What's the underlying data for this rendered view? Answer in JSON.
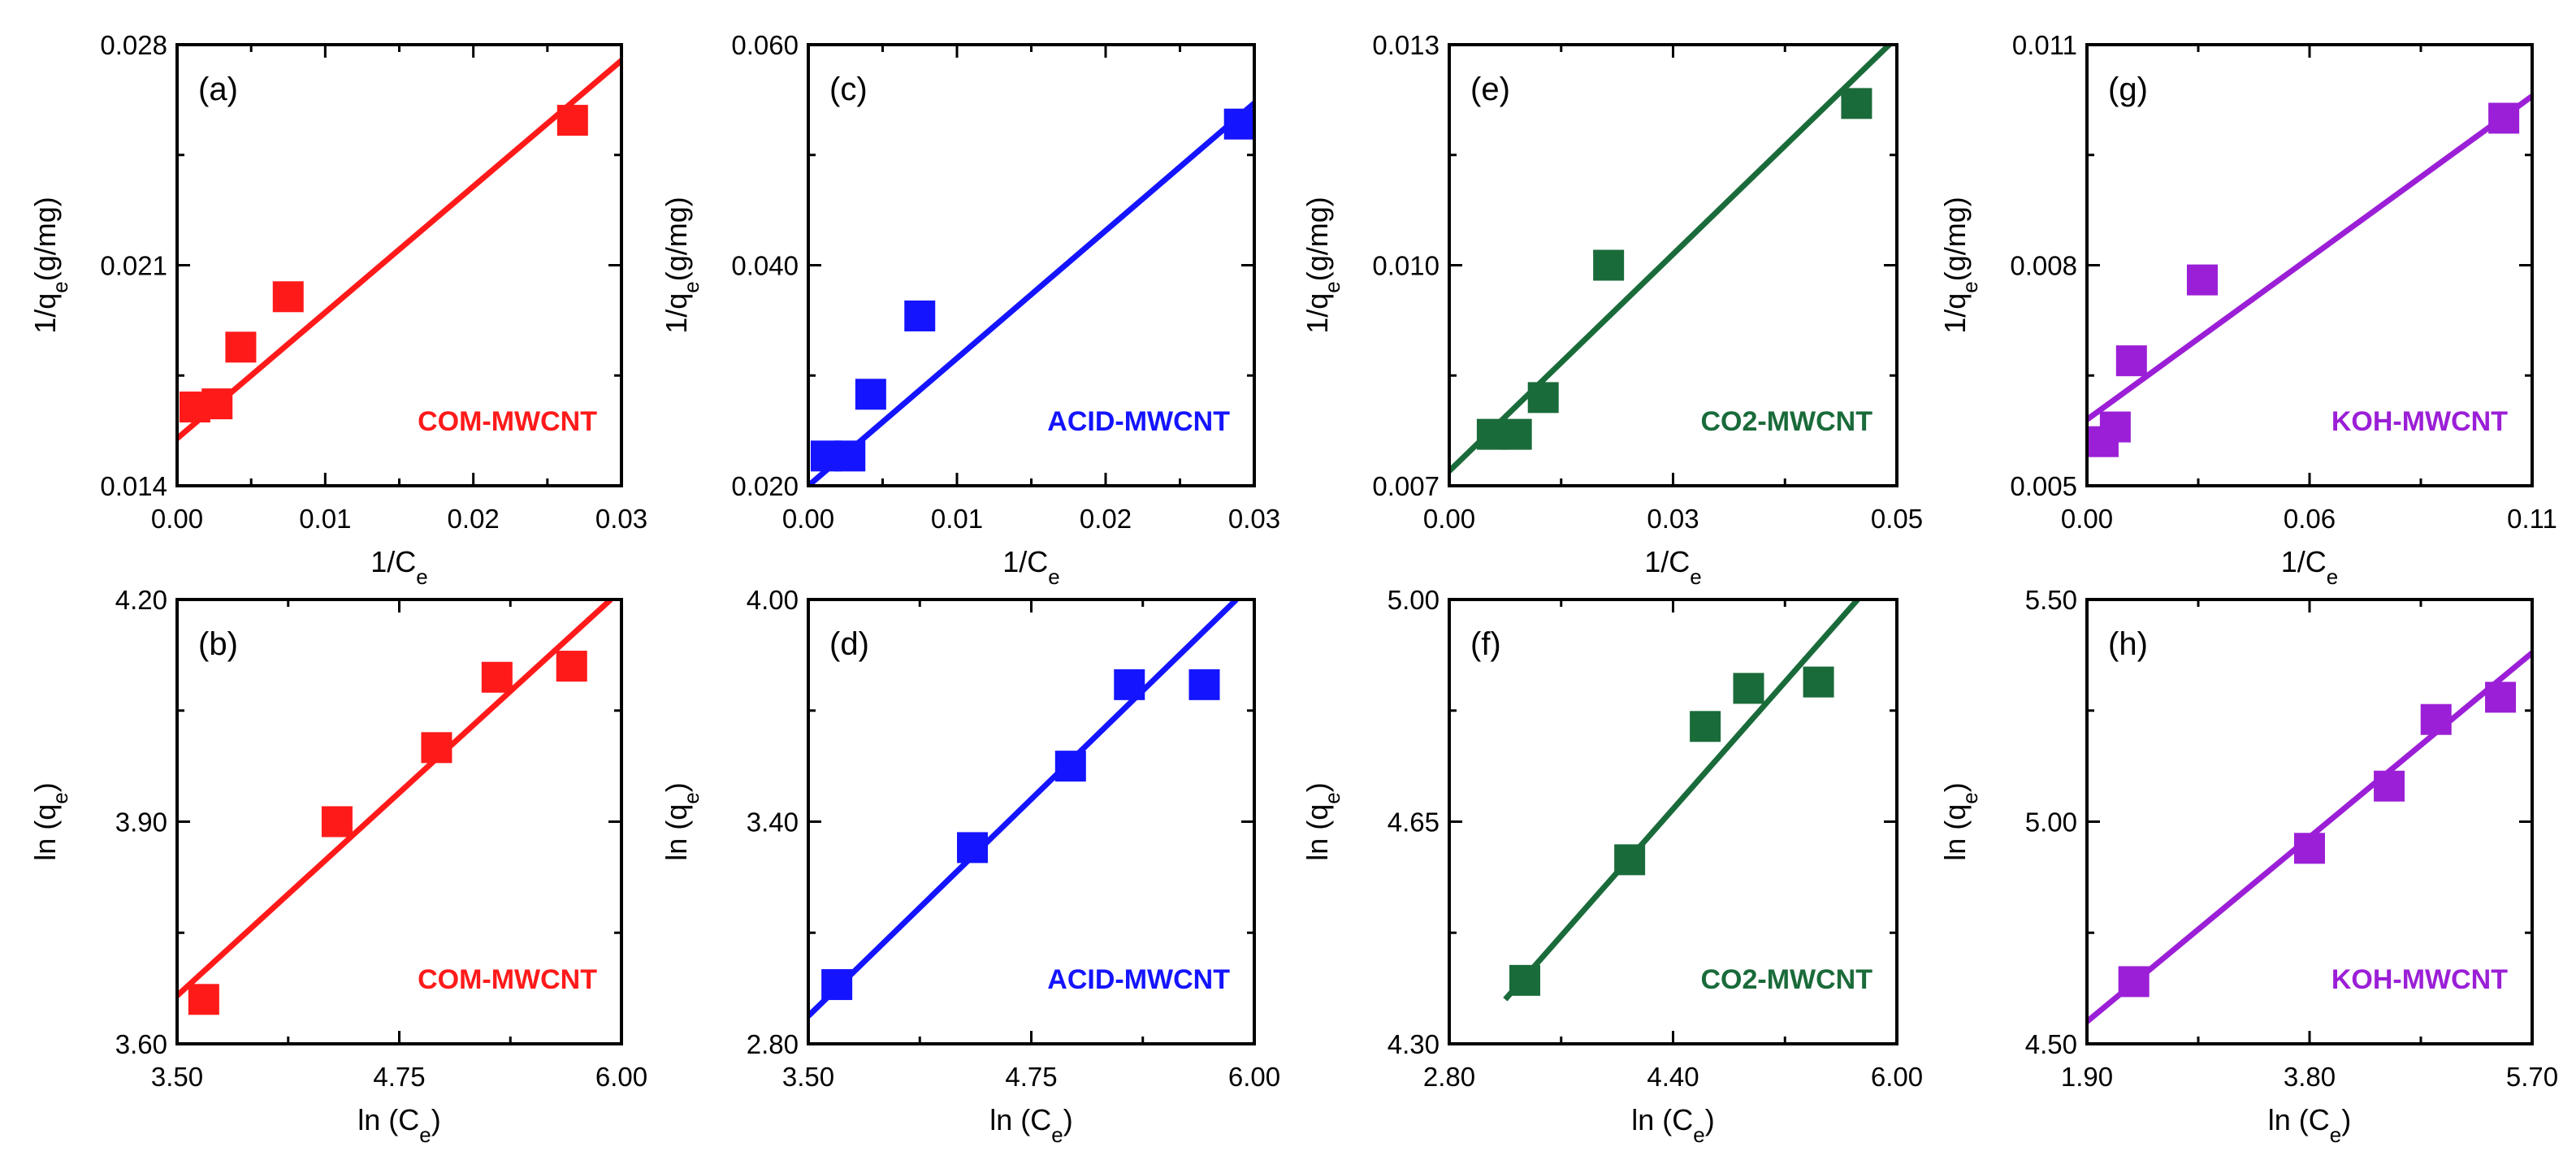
{
  "chart_data": [
    {
      "panel": "(a)",
      "type": "scatter",
      "material": "COM-MWCNT",
      "color": "#ff1a1a",
      "xlabel": "1/C",
      "xlabel_sub": "e",
      "xlabel_suffix": "",
      "ylabel": "1/q",
      "ylabel_sub": "e",
      "ylabel_suffix": "(g/mg)",
      "xlim": [
        0,
        0.03
      ],
      "ylim": [
        0.014,
        0.028
      ],
      "xticks": [
        "0.00",
        "0.01",
        "0.02",
        "0.03"
      ],
      "yticks": [
        "0.014",
        "0.021",
        "0.028"
      ],
      "x": [
        0.0012,
        0.0027,
        0.0043,
        0.0075,
        0.0267
      ],
      "y": [
        0.0165,
        0.0166,
        0.0184,
        0.02,
        0.0256
      ],
      "fit": {
        "x": [
          0,
          0.03
        ],
        "y": [
          0.0155,
          0.0275
        ]
      }
    },
    {
      "panel": "(c)",
      "type": "scatter",
      "material": "ACID-MWCNT",
      "color": "#1414ff",
      "xlabel": "1/C",
      "xlabel_sub": "e",
      "xlabel_suffix": "",
      "ylabel": "1/q",
      "ylabel_sub": "e",
      "ylabel_suffix": "(g/mg)",
      "xlim": [
        0,
        0.03
      ],
      "ylim": [
        0.02,
        0.06
      ],
      "xticks": [
        "0.00",
        "0.01",
        "0.02",
        "0.03"
      ],
      "yticks": [
        "0.020",
        "0.040",
        "0.060"
      ],
      "x": [
        0.0012,
        0.0028,
        0.0042,
        0.0075,
        0.029
      ],
      "y": [
        0.0227,
        0.0227,
        0.0283,
        0.0354,
        0.0528
      ],
      "fit": {
        "x": [
          0,
          0.03
        ],
        "y": [
          0.02,
          0.0547
        ]
      }
    },
    {
      "panel": "(e)",
      "type": "scatter",
      "material": "CO2-MWCNT",
      "color": "#1a6b3a",
      "xlabel": "1/C",
      "xlabel_sub": "e",
      "xlabel_suffix": "",
      "ylabel": "1/q",
      "ylabel_sub": "e",
      "ylabel_suffix": "(g/mg)",
      "xlim": [
        0,
        0.05
      ],
      "ylim": [
        0.007,
        0.013
      ],
      "xticks": [
        "0.00",
        "0.03",
        "0.05"
      ],
      "xtick_values": [
        0,
        0.025,
        0.05
      ],
      "yticks": [
        "0.007",
        "0.010",
        "0.013"
      ],
      "x": [
        0.0048,
        0.0075,
        0.0105,
        0.0178,
        0.0455
      ],
      "y": [
        0.0077,
        0.0077,
        0.0082,
        0.01,
        0.0122
      ],
      "fit": {
        "x": [
          0,
          0.05
        ],
        "y": [
          0.0072,
          0.0131
        ]
      }
    },
    {
      "panel": "(g)",
      "type": "scatter",
      "material": "KOH-MWCNT",
      "color": "#9b1fd6",
      "xlabel": "1/C",
      "xlabel_sub": "e",
      "xlabel_suffix": "",
      "ylabel": "1/q",
      "ylabel_sub": "e",
      "ylabel_suffix": "(g/mg)",
      "xlim": [
        0,
        0.11
      ],
      "ylim": [
        0.005,
        0.011
      ],
      "xticks": [
        "0.00",
        "0.06",
        "0.11"
      ],
      "xtick_values": [
        0,
        0.055,
        0.11
      ],
      "yticks": [
        "0.005",
        "0.008",
        "0.011"
      ],
      "x": [
        0.004,
        0.007,
        0.011,
        0.0285,
        0.103
      ],
      "y": [
        0.0056,
        0.0058,
        0.0067,
        0.0078,
        0.01
      ],
      "fit": {
        "x": [
          0,
          0.11
        ],
        "y": [
          0.0059,
          0.0103
        ]
      }
    },
    {
      "panel": "(b)",
      "type": "scatter",
      "material": "COM-MWCNT",
      "color": "#ff1a1a",
      "xlabel": "ln (C",
      "xlabel_sub": "e",
      "xlabel_suffix": ")",
      "ylabel": "ln (q",
      "ylabel_sub": "e",
      "ylabel_suffix": ")",
      "xlim": [
        3.5,
        6.0
      ],
      "ylim": [
        3.6,
        4.2
      ],
      "xticks": [
        "3.50",
        "4.75",
        "6.00"
      ],
      "yticks": [
        "3.60",
        "3.90",
        "4.20"
      ],
      "x": [
        3.65,
        4.4,
        4.96,
        5.3,
        5.72
      ],
      "y": [
        3.66,
        3.9,
        4.0,
        4.095,
        4.11
      ],
      "fit": {
        "x": [
          3.5,
          5.94
        ],
        "y": [
          3.665,
          4.2
        ]
      }
    },
    {
      "panel": "(d)",
      "type": "scatter",
      "material": "ACID-MWCNT",
      "color": "#1414ff",
      "xlabel": "ln (C",
      "xlabel_sub": "e",
      "xlabel_suffix": ")",
      "ylabel": "ln (q",
      "ylabel_sub": "e",
      "ylabel_suffix": ")",
      "xlim": [
        3.5,
        6.0
      ],
      "ylim": [
        2.8,
        4.0
      ],
      "xticks": [
        "3.50",
        "4.75",
        "6.00"
      ],
      "yticks": [
        "2.80",
        "3.40",
        "4.00"
      ],
      "x": [
        3.66,
        4.42,
        4.97,
        5.3,
        5.72
      ],
      "y": [
        2.96,
        3.33,
        3.55,
        3.77,
        3.77
      ],
      "fit": {
        "x": [
          3.5,
          5.9
        ],
        "y": [
          2.875,
          4.0
        ]
      }
    },
    {
      "panel": "(f)",
      "type": "scatter",
      "material": "CO2-MWCNT",
      "color": "#1a6b3a",
      "xlabel": "ln (C",
      "xlabel_sub": "e",
      "xlabel_suffix": ")",
      "ylabel": "ln (q",
      "ylabel_sub": "e",
      "ylabel_suffix": ")",
      "xlim": [
        2.8,
        6.0
      ],
      "ylim": [
        4.3,
        5.0
      ],
      "xticks": [
        "2.80",
        "4.40",
        "6.00"
      ],
      "yticks": [
        "4.30",
        "4.65",
        "5.00"
      ],
      "x": [
        3.34,
        4.09,
        4.63,
        4.94,
        5.44
      ],
      "y": [
        4.4,
        4.59,
        4.8,
        4.86,
        4.87
      ],
      "fit": {
        "x": [
          3.2,
          5.72
        ],
        "y": [
          4.37,
          5.0
        ]
      }
    },
    {
      "panel": "(h)",
      "type": "scatter",
      "material": "KOH-MWCNT",
      "color": "#9b1fd6",
      "xlabel": "ln (C",
      "xlabel_sub": "e",
      "xlabel_suffix": ")",
      "ylabel": "ln (q",
      "ylabel_sub": "e",
      "ylabel_suffix": ")",
      "xlim": [
        1.9,
        5.7
      ],
      "ylim": [
        4.5,
        5.5
      ],
      "xticks": [
        "1.90",
        "3.80",
        "5.70"
      ],
      "yticks": [
        "4.50",
        "5.00",
        "5.50"
      ],
      "x": [
        2.3,
        3.8,
        4.48,
        4.88,
        5.43
      ],
      "y": [
        4.64,
        4.94,
        5.08,
        5.23,
        5.28
      ],
      "fit": {
        "x": [
          1.9,
          5.7
        ],
        "y": [
          4.55,
          5.38
        ]
      }
    }
  ]
}
